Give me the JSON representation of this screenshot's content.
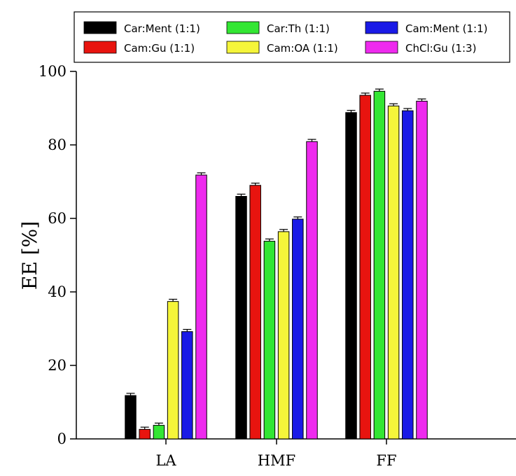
{
  "chart_data": {
    "type": "bar",
    "title": "",
    "xlabel": "",
    "ylabel": "EE [%]",
    "ylim": [
      0,
      100
    ],
    "yticks": [
      0,
      20,
      40,
      60,
      80,
      100
    ],
    "grid": false,
    "legend_position": "top",
    "categories": [
      "LA",
      "HMF",
      "FF"
    ],
    "series": [
      {
        "name": "Car:Ment (1:1)",
        "color": "#000000",
        "values": [
          11.8,
          66.0,
          88.8
        ],
        "errors": [
          0.6,
          0.6,
          0.6
        ]
      },
      {
        "name": "Cam:Gu (1:1)",
        "color": "#e8140f",
        "values": [
          2.6,
          69.0,
          93.5
        ],
        "errors": [
          0.6,
          0.6,
          0.6
        ]
      },
      {
        "name": "Car:Th (1:1)",
        "color": "#33e633",
        "values": [
          3.7,
          53.8,
          94.6
        ],
        "errors": [
          0.6,
          0.6,
          0.6
        ]
      },
      {
        "name": "Cam:OA (1:1)",
        "color": "#f5f53a",
        "values": [
          37.4,
          56.4,
          90.6
        ],
        "errors": [
          0.6,
          0.6,
          0.6
        ]
      },
      {
        "name": "Cam:Ment (1:1)",
        "color": "#1a1ae6",
        "values": [
          29.2,
          59.8,
          89.3
        ],
        "errors": [
          0.6,
          0.6,
          0.6
        ]
      },
      {
        "name": "ChCl:Gu (1:3)",
        "color": "#ee2aee",
        "values": [
          71.8,
          80.9,
          91.9
        ],
        "errors": [
          0.6,
          0.6,
          0.6
        ]
      }
    ]
  }
}
